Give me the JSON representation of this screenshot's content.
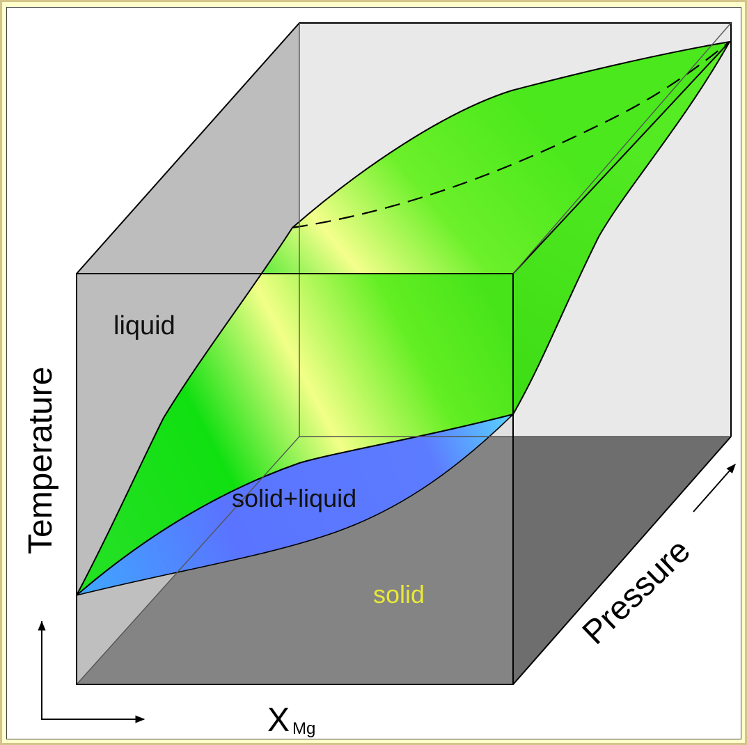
{
  "labels": {
    "liquid": "liquid",
    "solid_liquid": "solid+liquid",
    "solid": "solid",
    "temperature_axis": "Temperature",
    "pressure_axis": "Pressure",
    "composition_axis_main": "X",
    "composition_axis_sub": "Mg"
  },
  "colors": {
    "liquidus_surface_green": "#1ee01e",
    "liquidus_surface_highlight": "#f2ff8a",
    "solidus_surface_blue": "#5b7cff",
    "solid_floor": "#6e6e6e",
    "back_wall": "#e8e8e8",
    "left_wall": "#bdbdbd",
    "solid_label": "#e8e83a",
    "frame_background": "#ffffcc"
  }
}
